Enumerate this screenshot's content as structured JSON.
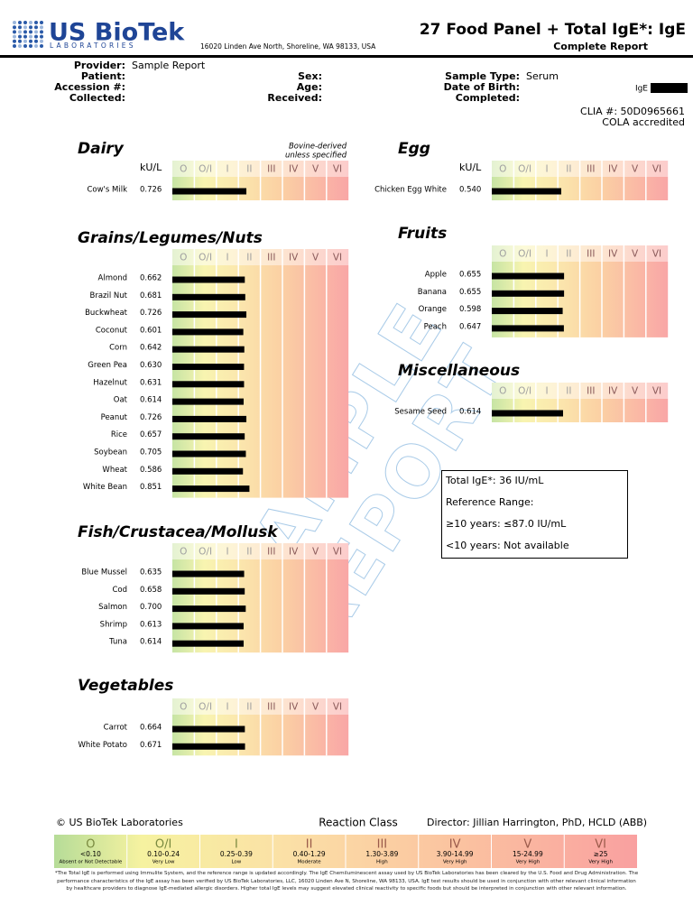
{
  "header": {
    "logo_name": "US BioTek",
    "logo_sub": "LABORATORIES",
    "address": "16020 Linden Ave North, Shoreline, WA 98133, USA",
    "title": "27 Food Panel + Total IgE*: IgE",
    "subtitle": "Complete Report"
  },
  "patient_info": {
    "col1": [
      {
        "label": "Provider:",
        "value": "Sample Report"
      },
      {
        "label": "Patient:"
      },
      {
        "label": "Accession #:"
      },
      {
        "label": "Collected:"
      }
    ],
    "col2": [
      {
        "label": "Sex:"
      },
      {
        "label": "Age:"
      },
      {
        "label": "Received:"
      }
    ],
    "col3": [
      {
        "label": "Sample Type:",
        "value": "Serum"
      },
      {
        "label": "Date of Birth:"
      },
      {
        "label": "Completed:"
      }
    ],
    "ige_tag": "IgE",
    "clia": "CLIA #: 50D0965661",
    "accreditation": "COLA accredited"
  },
  "unit": "kU/L",
  "classes": [
    {
      "label": "O",
      "range": "<0.10",
      "description": "Absent or Not Detectable"
    },
    {
      "label": "O/I",
      "range": "0.10-0.24",
      "description": "Very Low"
    },
    {
      "label": "I",
      "range": "0.25-0.39",
      "description": "Low"
    },
    {
      "label": "II",
      "range": "0.40-1.29",
      "description": "Moderate"
    },
    {
      "label": "III",
      "range": "1.30-3.89",
      "description": "High"
    },
    {
      "label": "IV",
      "range": "3.90-14.99",
      "description": "Very High"
    },
    {
      "label": "V",
      "range": "15-24.99",
      "description": "Very High"
    },
    {
      "label": "VI",
      "range": "≥25",
      "description": "Very High"
    }
  ],
  "panels": [
    {
      "title": "Dairy",
      "note": [
        "Bovine-derived",
        "unless specified"
      ],
      "show_unit": true,
      "items": [
        {
          "name": "Cow's Milk",
          "value": 0.726
        }
      ]
    },
    {
      "title": "Grains/Legumes/Nuts",
      "show_unit": false,
      "items": [
        {
          "name": "Almond",
          "value": 0.662
        },
        {
          "name": "Brazil Nut",
          "value": 0.681
        },
        {
          "name": "Buckwheat",
          "value": 0.726
        },
        {
          "name": "Coconut",
          "value": 0.601
        },
        {
          "name": "Corn",
          "value": 0.642
        },
        {
          "name": "Green Pea",
          "value": 0.63,
          "value_label": "0.630"
        },
        {
          "name": "Hazelnut",
          "value": 0.631
        },
        {
          "name": "Oat",
          "value": 0.614
        },
        {
          "name": "Peanut",
          "value": 0.726
        },
        {
          "name": "Rice",
          "value": 0.657
        },
        {
          "name": "Soybean",
          "value": 0.705
        },
        {
          "name": "Wheat",
          "value": 0.586
        },
        {
          "name": "White Bean",
          "value": 0.851
        }
      ]
    },
    {
      "title": "Fish/Crustacea/Mollusk",
      "show_unit": false,
      "items": [
        {
          "name": "Blue Mussel",
          "value": 0.635
        },
        {
          "name": "Cod",
          "value": 0.658
        },
        {
          "name": "Salmon",
          "value": 0.7,
          "value_label": "0.700"
        },
        {
          "name": "Shrimp",
          "value": 0.613
        },
        {
          "name": "Tuna",
          "value": 0.614
        }
      ]
    },
    {
      "title": "Vegetables",
      "show_unit": false,
      "items": [
        {
          "name": "Carrot",
          "value": 0.664
        },
        {
          "name": "White Potato",
          "value": 0.671
        }
      ]
    },
    {
      "title": "Egg",
      "show_unit": true,
      "items": [
        {
          "name": "Chicken Egg White",
          "value": 0.54,
          "value_label": "0.540"
        }
      ]
    },
    {
      "title": "Fruits",
      "show_unit": false,
      "items": [
        {
          "name": "Apple",
          "value": 0.655
        },
        {
          "name": "Banana",
          "value": 0.655
        },
        {
          "name": "Orange",
          "value": 0.598
        },
        {
          "name": "Peach",
          "value": 0.647
        }
      ]
    },
    {
      "title": "Miscellaneous",
      "show_unit": false,
      "items": [
        {
          "name": "Sesame Seed",
          "value": 0.614
        }
      ]
    }
  ],
  "watermark": [
    "SAMPLE",
    "REPORT"
  ],
  "total_ige": [
    "Total IgE*: 36 IU/mL",
    "Reference Range:",
    "≥10 years: ≤87.0 IU/mL",
    "<10 years: Not available"
  ],
  "footer": {
    "copyright": "© US BioTek Laboratories",
    "reaction_class": "Reaction Class",
    "director": "Director: Jillian Harrington, PhD, HCLD (ABB)",
    "footnote": "*The Total IgE is performed using Immulite System, and the reference range is updated accordingly. The IgE Chemiluminescent assay used by US BioTek Laboratories has been cleared by the U.S. Food and Drug Administration. The performance characteristics of the IgE assay has been verified by US BioTek Laboratories, LLC, 16020 Linden Ave N, Shoreline, WA 98133, USA. IgE test results should be used in conjunction with other relevant clinical information by healthcare providers to diagnose IgE-mediated allergic disorders. Higher total IgE levels may suggest elevated clinical reactivity to specific foods but should be interpreted in conjunction with other relevant information."
  }
}
